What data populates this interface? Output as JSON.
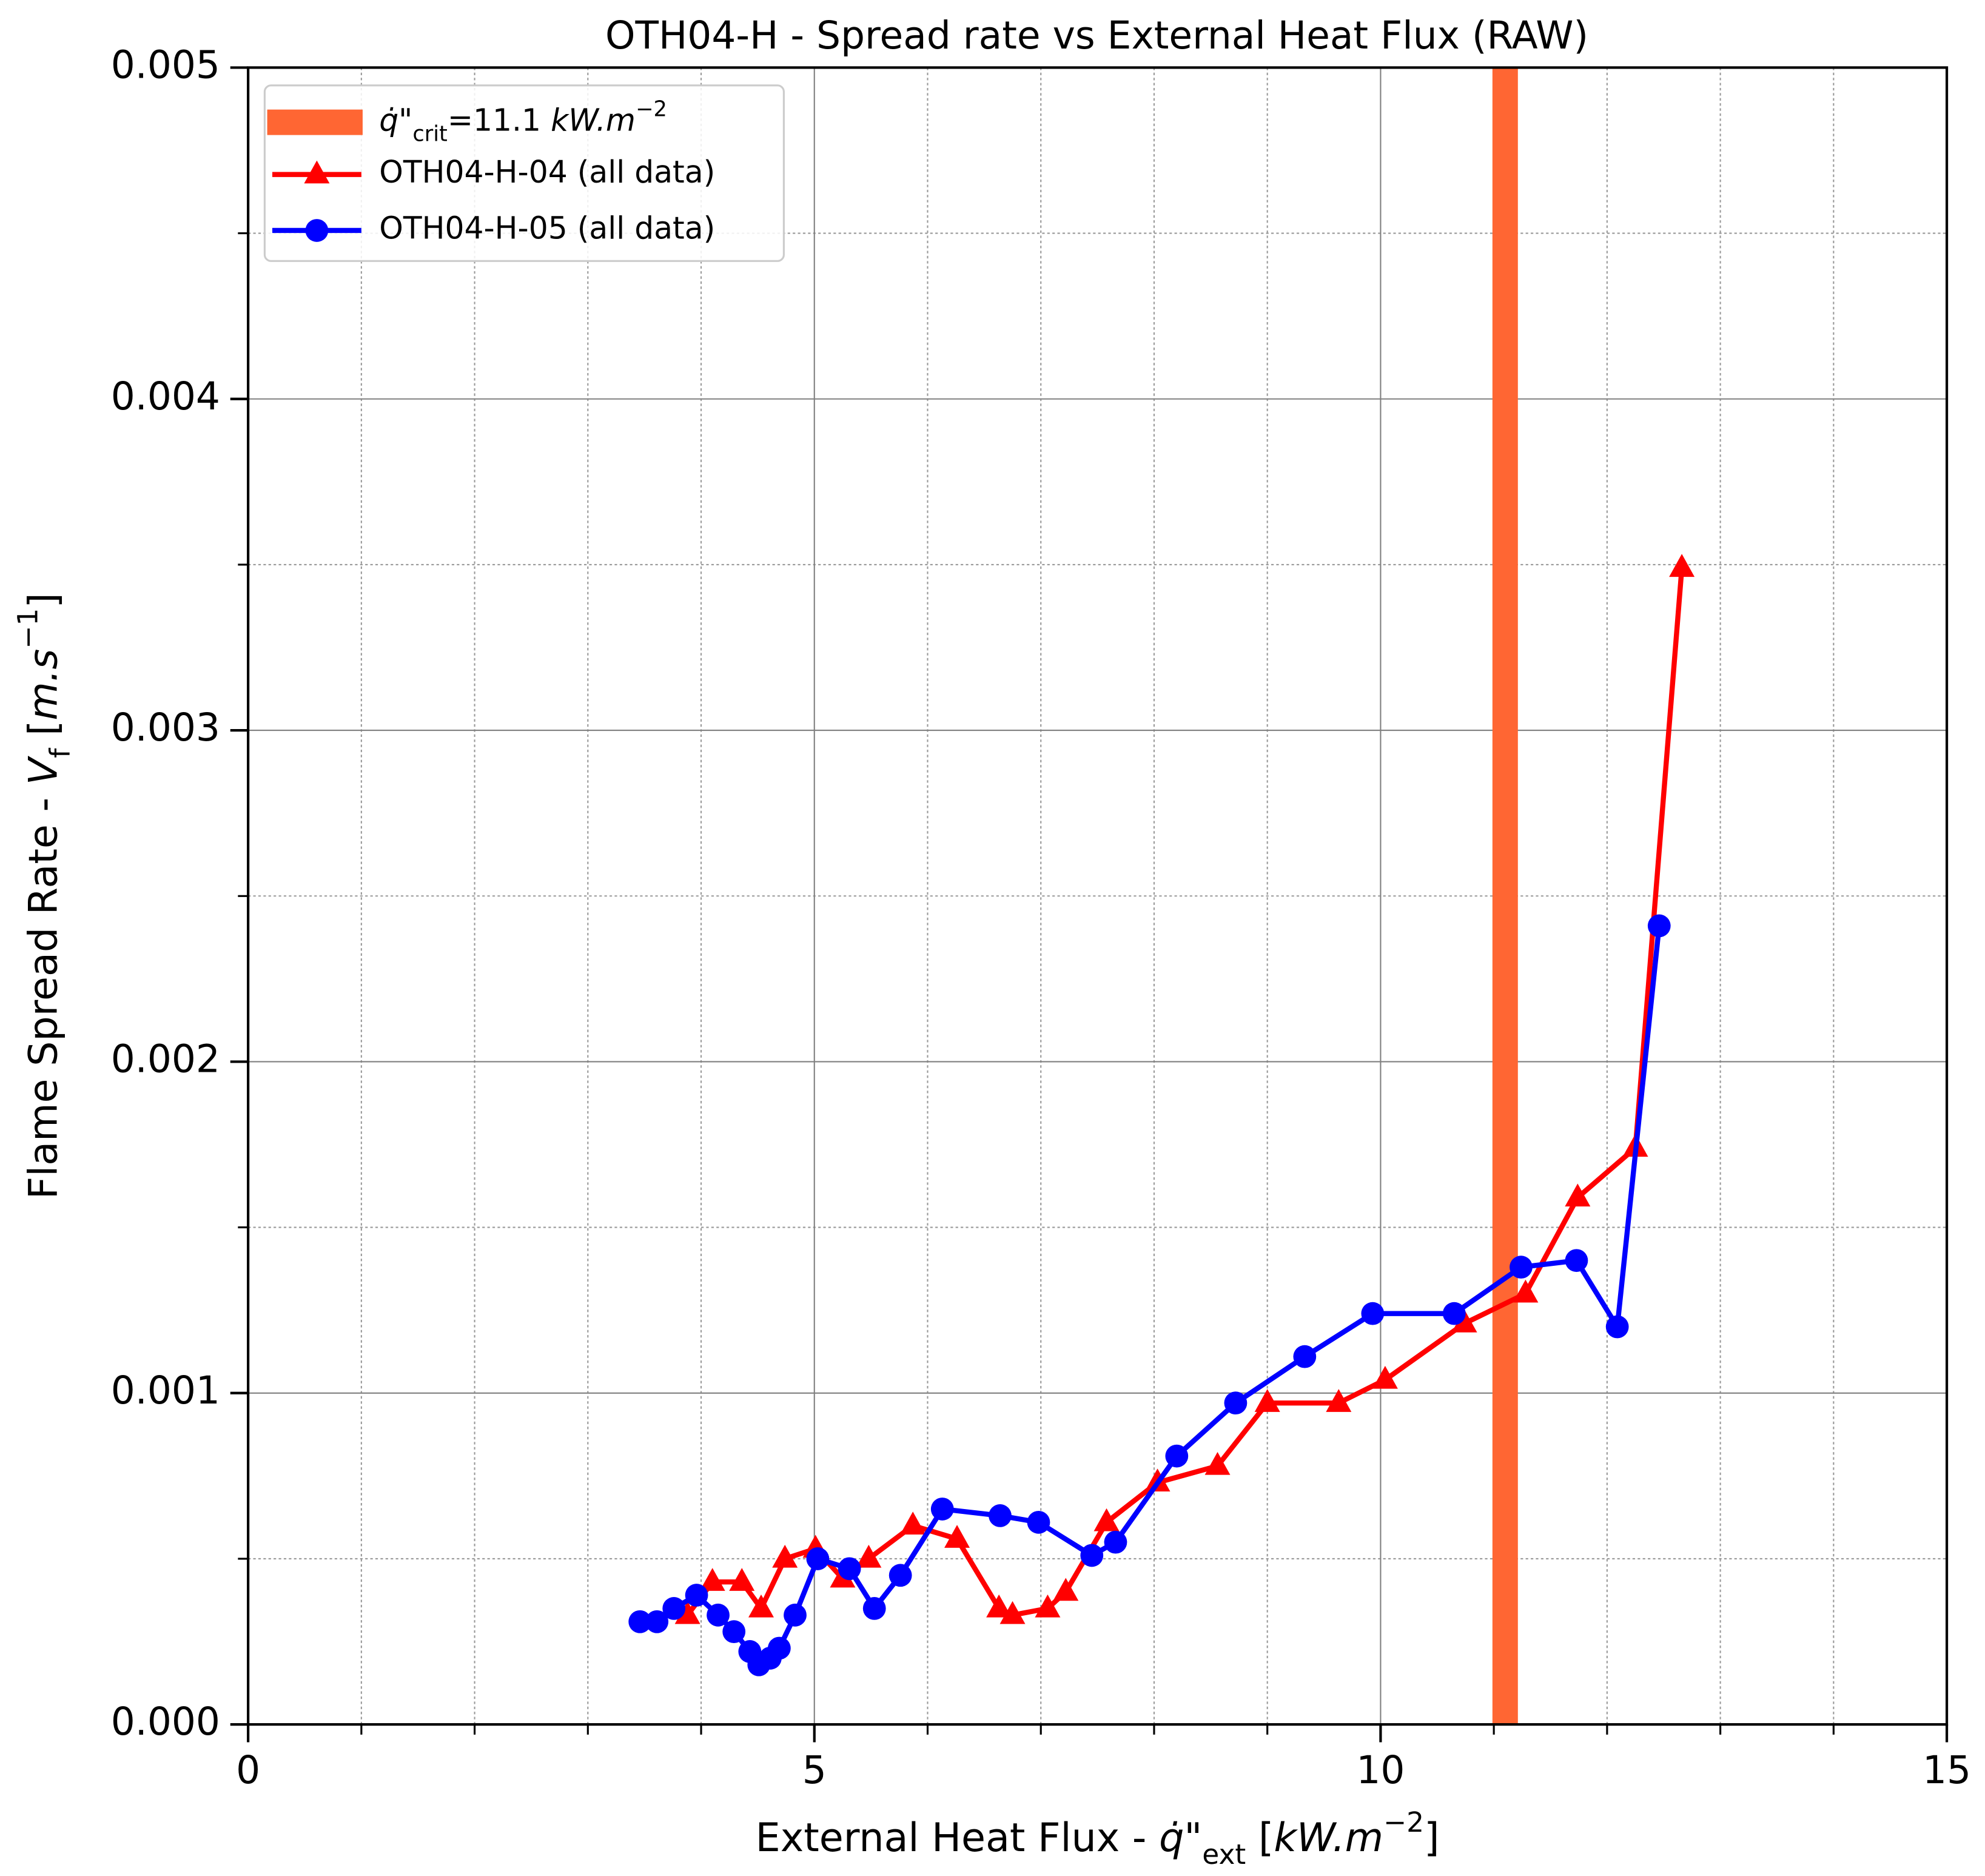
{
  "chart_data": {
    "type": "line",
    "title": "OTH04-H - Spread rate vs External Heat Flux (RAW)",
    "xlabel": [
      {
        "text": "External Heat Flux - ",
        "style": "normal"
      },
      {
        "text": "q̇\"",
        "style": "it"
      },
      {
        "text": "ext",
        "style": "sub"
      },
      {
        "text": " [",
        "style": "normal"
      },
      {
        "text": "kW.m",
        "style": "it"
      },
      {
        "text": "−2",
        "style": "sup"
      },
      {
        "text": "]",
        "style": "normal"
      }
    ],
    "ylabel": [
      {
        "text": "Flame Spread Rate - ",
        "style": "normal"
      },
      {
        "text": "V",
        "style": "it"
      },
      {
        "text": "f",
        "style": "sub"
      },
      {
        "text": " [",
        "style": "normal"
      },
      {
        "text": "m.s",
        "style": "it"
      },
      {
        "text": "−1",
        "style": "sup"
      },
      {
        "text": "]",
        "style": "normal"
      }
    ],
    "xlim": [
      0,
      15
    ],
    "ylim": [
      0,
      0.005
    ],
    "xticks": [
      0,
      5,
      10,
      15
    ],
    "yticks": [
      {
        "value": 0,
        "label": "0.000"
      },
      {
        "value": 0.001,
        "label": "0.001"
      },
      {
        "value": 0.002,
        "label": "0.002"
      },
      {
        "value": 0.003,
        "label": "0.003"
      },
      {
        "value": 0.004,
        "label": "0.004"
      },
      {
        "value": 0.005,
        "label": "0.005"
      }
    ],
    "xminor": [
      1,
      2,
      3,
      4,
      6,
      7,
      8,
      9,
      11,
      12,
      13,
      14
    ],
    "yminor": [
      0.0005,
      0.0015,
      0.0025,
      0.0035,
      0.0045
    ],
    "grid": true,
    "legend": "upper left",
    "vline": {
      "x": 11.1,
      "color": "#ff6633",
      "label": [
        {
          "text": "q̇\"",
          "style": "it"
        },
        {
          "text": "crit",
          "style": "sub"
        },
        {
          "text": "=11.1 ",
          "style": "normal"
        },
        {
          "text": "kW.m",
          "style": "it"
        },
        {
          "text": "−2",
          "style": "sup"
        }
      ]
    },
    "series": [
      {
        "name": "OTH04-H-04 (all data)",
        "color": "#ff0000",
        "marker": "triangle",
        "x": [
          3.88,
          4.1,
          4.36,
          4.53,
          4.74,
          5.01,
          5.25,
          5.48,
          5.87,
          6.26,
          6.63,
          6.75,
          7.06,
          7.22,
          7.58,
          8.03,
          8.56,
          9.0,
          9.63,
          10.04,
          10.74,
          11.28,
          11.74,
          12.25,
          12.66
        ],
        "values": [
          0.00033,
          0.00043,
          0.00043,
          0.00035,
          0.0005,
          0.00053,
          0.00044,
          0.0005,
          0.0006,
          0.00056,
          0.00035,
          0.00033,
          0.00035,
          0.0004,
          0.00061,
          0.00073,
          0.00078,
          0.00097,
          0.00097,
          0.00104,
          0.00121,
          0.0013,
          0.00159,
          0.00174,
          0.00349
        ]
      },
      {
        "name": "OTH04-H-05 (all data)",
        "color": "#0000ff",
        "marker": "circle",
        "x": [
          3.46,
          3.61,
          3.76,
          3.96,
          4.15,
          4.29,
          4.43,
          4.51,
          4.61,
          4.69,
          4.83,
          5.03,
          5.31,
          5.53,
          5.76,
          6.13,
          6.64,
          6.98,
          7.45,
          7.66,
          8.2,
          8.72,
          9.33,
          9.93,
          10.65,
          11.24,
          11.73,
          12.09,
          12.46
        ],
        "values": [
          0.00031,
          0.00031,
          0.00035,
          0.00039,
          0.00033,
          0.00028,
          0.00022,
          0.00018,
          0.0002,
          0.00023,
          0.00033,
          0.0005,
          0.00047,
          0.00035,
          0.00045,
          0.00065,
          0.00063,
          0.00061,
          0.00051,
          0.00055,
          0.00081,
          0.00097,
          0.00111,
          0.00124,
          0.00124,
          0.00138,
          0.0014,
          0.0012,
          0.00241
        ]
      }
    ]
  }
}
